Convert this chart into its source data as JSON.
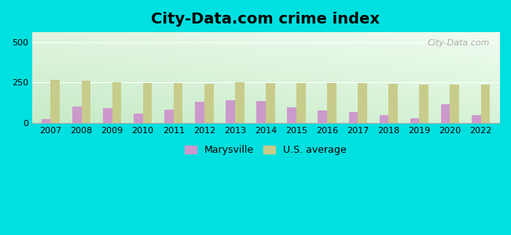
{
  "title": "City-Data.com crime index",
  "years": [
    2007,
    2008,
    2009,
    2010,
    2011,
    2012,
    2013,
    2014,
    2015,
    2016,
    2017,
    2018,
    2019,
    2020,
    2022
  ],
  "marysville": [
    25,
    105,
    95,
    60,
    85,
    130,
    140,
    135,
    100,
    80,
    70,
    52,
    32,
    115,
    50
  ],
  "us_average": [
    268,
    262,
    252,
    248,
    245,
    243,
    253,
    245,
    245,
    248,
    245,
    243,
    240,
    240,
    238
  ],
  "marysville_color": "#cc99cc",
  "us_average_color": "#c8cc8a",
  "outer_bg": "#00e0e0",
  "gradient_left": "#c5e8c5",
  "gradient_right": "#e8f5e8",
  "ylim": [
    0,
    560
  ],
  "yticks": [
    0,
    250,
    500
  ],
  "bar_width": 0.3,
  "title_fontsize": 14,
  "legend_fontsize": 9,
  "tick_fontsize": 8
}
